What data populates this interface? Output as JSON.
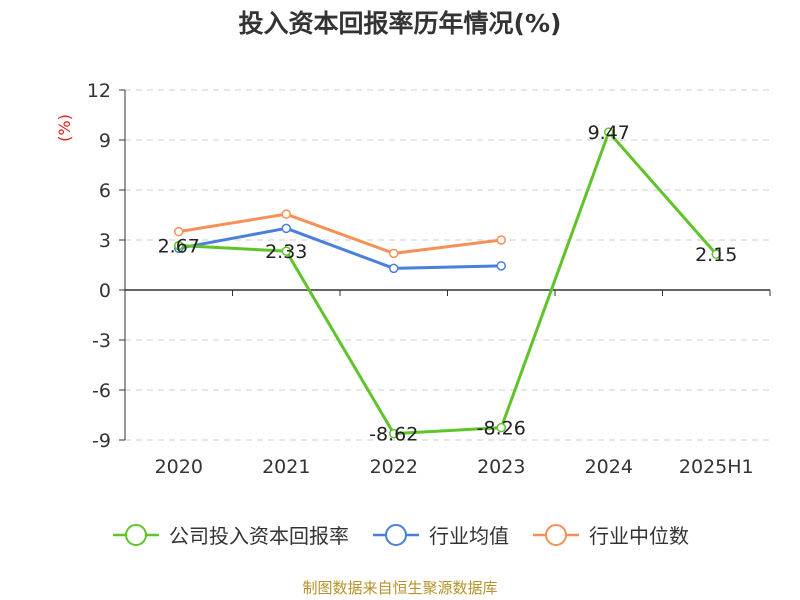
{
  "chart_data": {
    "type": "line",
    "title": "投入资本回报率历年情况(%)",
    "ylabel": "(%)",
    "xlabel": "",
    "categories": [
      "2020",
      "2021",
      "2022",
      "2023",
      "2024",
      "2025H1"
    ],
    "ylim": [
      -9,
      12
    ],
    "yticks": [
      12,
      9,
      6,
      3,
      0,
      -3,
      -6,
      -9
    ],
    "grid": true,
    "legend_position": "bottom",
    "series": [
      {
        "name": "公司投入资本回报率",
        "color": "#5ec42a",
        "values": [
          2.67,
          2.33,
          -8.62,
          -8.26,
          9.47,
          2.15
        ],
        "labels": [
          "2.67",
          "2.33",
          "-8.62",
          "-8.26",
          "9.47",
          "2.15"
        ]
      },
      {
        "name": "行业均值",
        "color": "#4a7fdc",
        "values": [
          2.5,
          3.7,
          1.3,
          1.45,
          null,
          null
        ],
        "labels": []
      },
      {
        "name": "行业中位数",
        "color": "#f59058",
        "values": [
          3.5,
          4.55,
          2.2,
          3.0,
          null,
          null
        ],
        "labels": []
      }
    ]
  },
  "footer": {
    "source": "制图数据来自恒生聚源数据库"
  }
}
